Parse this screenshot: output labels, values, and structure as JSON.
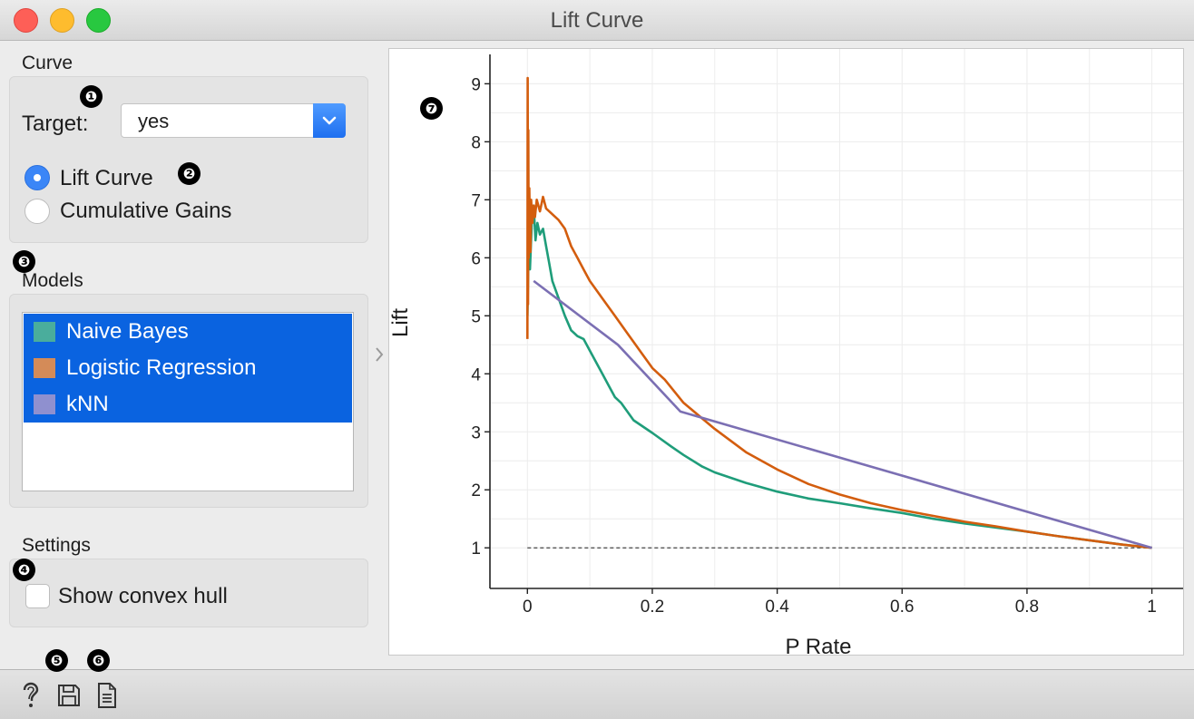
{
  "window": {
    "title": "Lift Curve"
  },
  "markers": [
    "❶",
    "❷",
    "❸",
    "❹",
    "❺",
    "❻",
    "❼"
  ],
  "curve": {
    "section_label": "Curve",
    "target_label": "Target:",
    "target_value": "yes",
    "options": [
      {
        "label": "Lift Curve",
        "checked": true
      },
      {
        "label": "Cumulative Gains",
        "checked": false
      }
    ]
  },
  "models": {
    "section_label": "Models",
    "items": [
      {
        "label": "Naive Bayes",
        "color": "#4aad9c"
      },
      {
        "label": "Logistic Regression",
        "color": "#d48b58"
      },
      {
        "label": "kNN",
        "color": "#8f90cf"
      }
    ]
  },
  "settings": {
    "section_label": "Settings",
    "convex_hull_label": "Show convex hull",
    "convex_hull_checked": false
  },
  "footer": {
    "icons": [
      "help-icon",
      "save-icon",
      "report-icon"
    ]
  },
  "chart_data": {
    "type": "line",
    "xlabel": "P Rate",
    "ylabel": "Lift",
    "xlim": [
      -0.06,
      1.05
    ],
    "ylim": [
      0.3,
      9.6
    ],
    "xticks": [
      "0",
      "0.2",
      "0.4",
      "0.6",
      "0.8",
      "1"
    ],
    "xtick_values": [
      0,
      0.2,
      0.4,
      0.6,
      0.8,
      1
    ],
    "yticks": [
      "1",
      "2",
      "3",
      "4",
      "5",
      "6",
      "7",
      "8",
      "9"
    ],
    "ytick_values": [
      1,
      2,
      3,
      4,
      5,
      6,
      7,
      8,
      9
    ],
    "grid": true,
    "baseline": {
      "y": 1,
      "style": "dashed",
      "color": "#444444"
    },
    "series": [
      {
        "name": "Naive Bayes",
        "color": "#1f9d7a",
        "x": [
          0.0,
          0.002,
          0.004,
          0.007,
          0.01,
          0.013,
          0.016,
          0.02,
          0.025,
          0.03,
          0.035,
          0.04,
          0.05,
          0.06,
          0.07,
          0.08,
          0.09,
          0.1,
          0.11,
          0.12,
          0.13,
          0.14,
          0.15,
          0.17,
          0.2,
          0.23,
          0.25,
          0.28,
          0.3,
          0.35,
          0.4,
          0.45,
          0.5,
          0.55,
          0.6,
          0.65,
          0.7,
          0.75,
          0.8,
          0.85,
          0.9,
          0.95,
          1.0
        ],
        "y": [
          5.0,
          6.2,
          5.8,
          6.6,
          6.9,
          6.3,
          6.6,
          6.4,
          6.5,
          6.2,
          5.9,
          5.6,
          5.3,
          5.0,
          4.75,
          4.65,
          4.6,
          4.4,
          4.2,
          4.0,
          3.8,
          3.6,
          3.5,
          3.2,
          2.98,
          2.75,
          2.6,
          2.4,
          2.3,
          2.12,
          1.97,
          1.85,
          1.77,
          1.68,
          1.6,
          1.5,
          1.42,
          1.35,
          1.28,
          1.2,
          1.13,
          1.06,
          1.0
        ]
      },
      {
        "name": "Logistic Regression",
        "color": "#d35d0e",
        "x": [
          0.0,
          0.0005,
          0.001,
          0.0015,
          0.002,
          0.003,
          0.004,
          0.005,
          0.006,
          0.008,
          0.01,
          0.012,
          0.015,
          0.02,
          0.025,
          0.03,
          0.04,
          0.05,
          0.06,
          0.07,
          0.08,
          0.09,
          0.1,
          0.12,
          0.14,
          0.16,
          0.18,
          0.2,
          0.22,
          0.25,
          0.3,
          0.35,
          0.4,
          0.45,
          0.5,
          0.55,
          0.6,
          0.65,
          0.7,
          0.75,
          0.8,
          0.85,
          0.9,
          0.95,
          1.0
        ],
        "y": [
          4.6,
          9.1,
          5.2,
          8.2,
          6.0,
          7.2,
          6.5,
          6.1,
          7.0,
          6.6,
          6.9,
          6.7,
          7.0,
          6.8,
          7.05,
          6.85,
          6.75,
          6.65,
          6.5,
          6.2,
          6.0,
          5.8,
          5.6,
          5.3,
          5.0,
          4.7,
          4.4,
          4.1,
          3.9,
          3.5,
          3.05,
          2.65,
          2.35,
          2.1,
          1.92,
          1.77,
          1.65,
          1.55,
          1.45,
          1.37,
          1.28,
          1.2,
          1.13,
          1.06,
          1.0
        ]
      },
      {
        "name": "kNN",
        "color": "#7b6fb3",
        "x": [
          0.01,
          0.145,
          0.245,
          1.0
        ],
        "y": [
          5.6,
          4.5,
          3.35,
          1.0
        ]
      }
    ]
  }
}
